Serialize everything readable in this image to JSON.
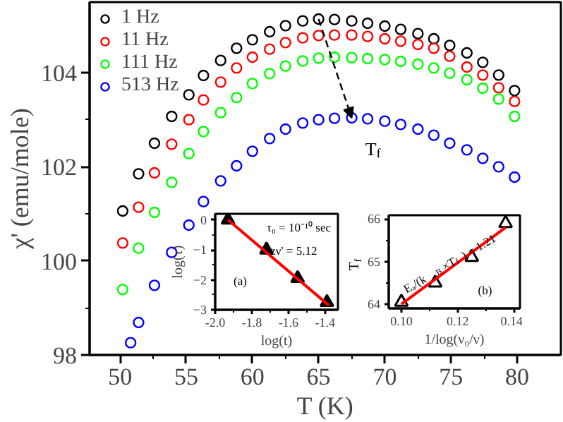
{
  "chart_data": [
    {
      "type": "scatter",
      "xlabel": "T (K)",
      "ylabel": "χ' (emu/mole)",
      "xlim": [
        47.7,
        83.3
      ],
      "ylim": [
        98,
        105.5
      ],
      "xticks": [
        50,
        55,
        60,
        65,
        70,
        75,
        80
      ],
      "yticks": [
        98,
        100,
        102,
        104
      ],
      "legend": "top left",
      "marker": "circle",
      "x": [
        50.2,
        51.4,
        52.6,
        53.9,
        55.2,
        56.3,
        57.6,
        58.8,
        60,
        61.3,
        62.5,
        63.8,
        65,
        66.2,
        67.5,
        68.7,
        70,
        71.2,
        72.5,
        73.7,
        74.9,
        76.2,
        77.4,
        78.6,
        79.8
      ],
      "series": [
        {
          "name": "1 Hz",
          "color": "#000000",
          "values": [
            101.06,
            101.85,
            102.5,
            103.07,
            103.53,
            103.94,
            104.26,
            104.52,
            104.7,
            104.87,
            105.0,
            105.1,
            105.14,
            105.13,
            105.1,
            105.05,
            104.99,
            104.92,
            104.83,
            104.72,
            104.58,
            104.42,
            104.22,
            103.95,
            103.62
          ]
        },
        {
          "name": "11 Hz",
          "color": "#ff0000",
          "values": [
            100.38,
            101.14,
            101.87,
            102.48,
            103.0,
            103.42,
            103.8,
            104.1,
            104.33,
            104.5,
            104.64,
            104.74,
            104.79,
            104.8,
            104.8,
            104.77,
            104.72,
            104.67,
            104.6,
            104.52,
            104.35,
            104.12,
            103.95,
            103.68,
            103.39
          ]
        },
        {
          "name": "111 Hz",
          "color": "#00ff00",
          "values": [
            99.39,
            100.27,
            101.03,
            101.67,
            102.28,
            102.75,
            103.15,
            103.47,
            103.77,
            103.98,
            104.14,
            104.25,
            104.31,
            104.33,
            104.32,
            104.3,
            104.28,
            104.24,
            104.18,
            104.1,
            103.99,
            103.85,
            103.67,
            103.44,
            103.07
          ]
        },
        {
          "name": "513 Hz",
          "color": "#0000ff",
          "values": [
            null,
            98.69,
            99.48,
            100.18,
            100.76,
            101.26,
            101.7,
            102.02,
            102.33,
            102.6,
            102.8,
            102.93,
            103.0,
            103.03,
            103.04,
            103.02,
            102.97,
            102.9,
            102.8,
            102.67,
            102.5,
            102.36,
            102.18,
            102.0,
            101.78
          ]
        },
        {
          "name": null,
          "color": "#0000ff",
          "x": [
            50.8
          ],
          "values": [
            98.26
          ]
        }
      ],
      "annotations": [
        "T$_{f}$"
      ]
    },
    {
      "type": "scatter",
      "xlabel": "log(t)",
      "ylabel": "log(τ)",
      "xlim": [
        -2.0,
        -1.33
      ],
      "ylim": [
        -3,
        0.2
      ],
      "xticks": [
        {
          "value": -2.0,
          "label": "-2.0"
        },
        {
          "value": -1.8,
          "label": "-1.8"
        },
        {
          "value": -1.6,
          "label": "-1.6"
        },
        {
          "value": -1.4,
          "label": "-1.4"
        }
      ],
      "yticks": [
        -3,
        -2,
        -1,
        0
      ],
      "series": [
        {
          "color": "#000000",
          "marker": "triangle",
          "x": [
            -1.93,
            -1.72,
            -1.55,
            -1.39
          ],
          "values": [
            0.0,
            -1.0,
            -1.95,
            -2.75
          ]
        },
        {
          "type": "line",
          "color": "#ff0000",
          "x": [
            -1.93,
            -1.38
          ],
          "values": [
            0.0,
            -2.85
          ]
        }
      ],
      "annotations": [
        "τ₀ = 10⁻¹⁰ sec",
        "zν' = 5.12",
        "(a)"
      ]
    },
    {
      "type": "scatter",
      "xlabel": "1/log(ν₀/ν)",
      "ylabel": "T$_{f}$",
      "xlim": [
        0.0955,
        0.1421
      ],
      "ylim": [
        63.9,
        66.09
      ],
      "xticks": [
        {
          "value": 0.1,
          "label": "0.10"
        },
        {
          "value": 0.12,
          "label": "0.12"
        },
        {
          "value": 0.14,
          "label": "0.14"
        }
      ],
      "yticks": [
        64,
        65,
        66
      ],
      "series": [
        {
          "color": "#000000",
          "marker": "triangle",
          "x": [
            0.1,
            0.112,
            0.125,
            0.137
          ],
          "values": [
            64.05,
            64.5,
            65.1,
            65.9
          ]
        },
        {
          "type": "line",
          "color": "#ff0000",
          "x": [
            0.1,
            0.137
          ],
          "values": [
            64.0,
            65.8
          ]
        }
      ],
      "annotations": [
        "Eₐ/(k$_{B}$×T$_{f}$) = 1.21",
        "(b)"
      ]
    }
  ]
}
